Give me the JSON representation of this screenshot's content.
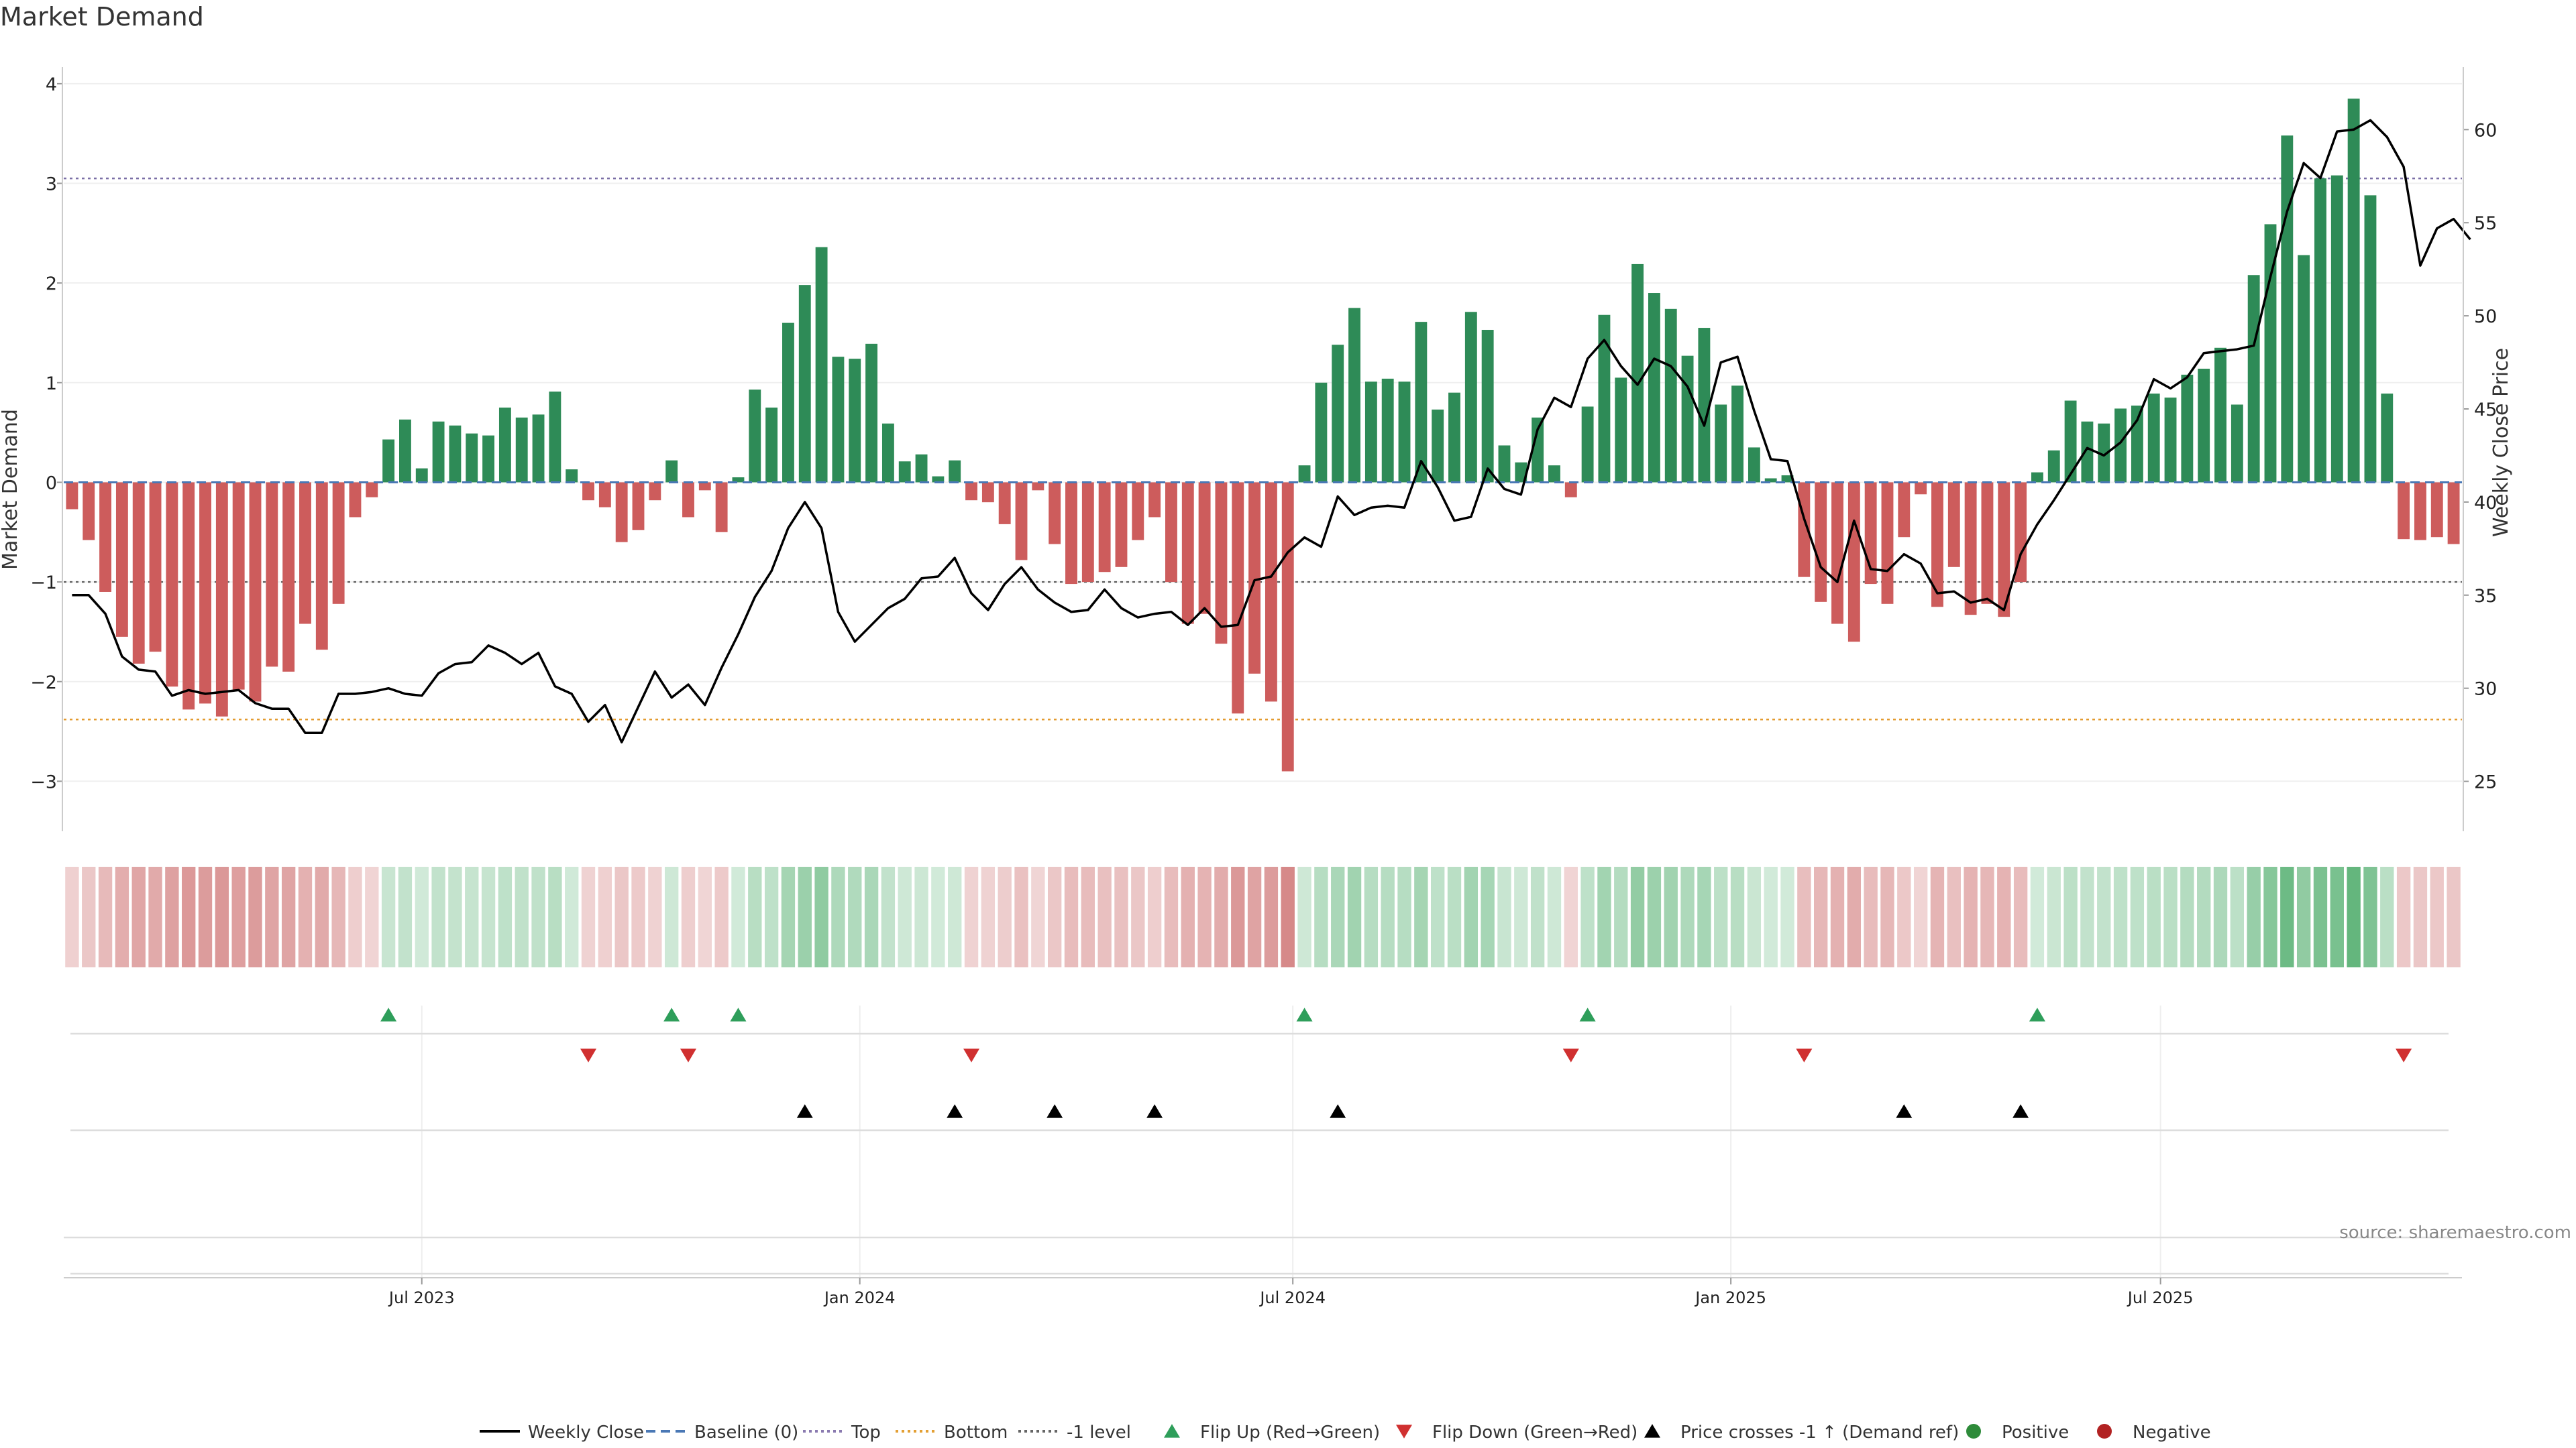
{
  "chart_data": {
    "type": "bar",
    "title": "Market Demand",
    "ylabel": "Market Demand",
    "y2label": "Weekly Close Price",
    "source": "source: sharemaestro.com",
    "ylim": [
      -3.3,
      4.1
    ],
    "y2lim": [
      23.4,
      63
    ],
    "yticks": [
      -3,
      -2,
      -1,
      0,
      1,
      2,
      3,
      4
    ],
    "y2ticks": [
      25,
      30,
      35,
      40,
      45,
      50,
      55,
      60
    ],
    "ytick_labels": [
      "−3",
      "−2",
      "−1",
      "0",
      "1",
      "2",
      "3",
      "4"
    ],
    "y2tick_labels": [
      "25",
      "30",
      "35",
      "40",
      "45",
      "50",
      "55",
      "60"
    ],
    "xtick_labels": [
      "Jul 2023",
      "Jan 2024",
      "Jul 2024",
      "Jan 2025",
      "Jul 2025"
    ],
    "xtick_index": [
      21.5,
      47.8,
      73.8,
      100.1,
      125.9
    ],
    "top_level": 3.05,
    "bottom_level": -2.38,
    "minus1_level": -1.0,
    "grid": true,
    "legend_placement": "bottom-center",
    "series": [
      {
        "name": "Market Demand",
        "values": [
          -0.27,
          -0.58,
          -1.1,
          -1.55,
          -1.82,
          -1.7,
          -2.05,
          -2.28,
          -2.22,
          -2.35,
          -2.08,
          -2.2,
          -1.85,
          -1.9,
          -1.42,
          -1.68,
          -1.22,
          -0.35,
          -0.15,
          0.43,
          0.63,
          0.14,
          0.61,
          0.57,
          0.49,
          0.47,
          0.75,
          0.65,
          0.68,
          0.91,
          0.13,
          -0.18,
          -0.25,
          -0.6,
          -0.48,
          -0.18,
          0.22,
          -0.35,
          -0.08,
          -0.5,
          0.05,
          0.93,
          0.75,
          1.6,
          1.98,
          2.36,
          1.26,
          1.24,
          1.39,
          0.59,
          0.21,
          0.28,
          0.06,
          0.22,
          -0.18,
          -0.2,
          -0.42,
          -0.78,
          -0.08,
          -0.62,
          -1.02,
          -1.0,
          -0.9,
          -0.85,
          -0.58,
          -0.35,
          -1.0,
          -1.42,
          -1.32,
          -1.62,
          -2.32,
          -1.92,
          -2.2,
          -2.9,
          0.17,
          1.0,
          1.38,
          1.75,
          1.01,
          1.04,
          1.01,
          1.61,
          0.73,
          0.9,
          1.71,
          1.53,
          0.37,
          0.2,
          0.65,
          0.17,
          -0.15,
          0.76,
          1.68,
          1.05,
          2.19,
          1.9,
          1.74,
          1.27,
          1.55,
          0.78,
          0.97,
          0.35,
          0.04,
          0.07,
          -0.95,
          -1.2,
          -1.42,
          -1.6,
          -1.02,
          -1.22,
          -0.55,
          -0.12,
          -1.25,
          -0.85,
          -1.33,
          -1.22,
          -1.35,
          -1.0,
          0.1,
          0.32,
          0.82,
          0.61,
          0.59,
          0.74,
          0.77,
          0.89,
          0.85,
          1.08,
          1.14,
          1.35,
          0.78,
          2.08,
          2.59,
          3.48,
          2.28,
          3.05,
          3.08,
          3.85,
          2.88,
          0.89,
          -0.57,
          -0.58,
          -0.55,
          -0.62
        ]
      },
      {
        "name": "Weekly Close",
        "values": [
          35,
          35,
          34,
          31.7,
          31,
          30.9,
          29.6,
          29.9,
          29.7,
          29.8,
          29.9,
          29.2,
          28.9,
          28.9,
          27.6,
          27.6,
          29.7,
          29.7,
          29.8,
          30,
          29.7,
          29.6,
          30.8,
          31.3,
          31.4,
          32.3,
          31.9,
          31.3,
          31.9,
          30.1,
          29.7,
          28.2,
          29.1,
          27.1,
          29,
          30.9,
          29.5,
          30.2,
          29.1,
          31.1,
          32.9,
          34.9,
          36.3,
          38.6,
          40,
          38.6,
          34.1,
          32.5,
          33.4,
          34.3,
          34.8,
          35.9,
          36,
          37,
          35.1,
          34.2,
          35.6,
          36.5,
          35.3,
          34.6,
          34.1,
          34.2,
          35.3,
          34.3,
          33.8,
          34,
          34.1,
          33.4,
          34.3,
          33.3,
          33.4,
          35.8,
          36,
          37.3,
          38.1,
          37.6,
          40.3,
          39.3,
          39.7,
          39.8,
          39.7,
          42.2,
          40.8,
          39,
          39.2,
          41.8,
          40.7,
          40.4,
          43.9,
          45.6,
          45.1,
          47.7,
          48.7,
          47.3,
          46.3,
          47.7,
          47.3,
          46.2,
          44.1,
          47.5,
          47.8,
          44.9,
          42.3,
          42.2,
          39.1,
          36.5,
          35.7,
          39,
          36.4,
          36.3,
          37.2,
          36.7,
          35.1,
          35.2,
          34.6,
          34.8,
          34.2,
          37.2,
          38.8,
          40.1,
          41.5,
          42.9,
          42.5,
          43.2,
          44.4,
          46.6,
          46.1,
          46.7,
          48,
          48.1,
          48.2,
          48.4,
          52.1,
          55.6,
          58.2,
          57.4,
          59.9,
          60,
          60.5,
          59.6,
          58,
          52.7,
          54.7,
          55.2,
          54.1
        ]
      }
    ],
    "flip_up_index": [
      19,
      36,
      40,
      74,
      91,
      118
    ],
    "flip_down_index": [
      31,
      37,
      54,
      90,
      104,
      140
    ],
    "price_cross_index": [
      44,
      53,
      59,
      65,
      76,
      110,
      117
    ],
    "legend": [
      {
        "label": "Weekly Close",
        "kind": "line",
        "color": "#000000"
      },
      {
        "label": "Baseline (0)",
        "kind": "dashed",
        "color": "#4a78b5"
      },
      {
        "label": "Top",
        "kind": "dotted",
        "color": "#8a7ab0"
      },
      {
        "label": "Bottom",
        "kind": "dotted",
        "color": "#e3a035"
      },
      {
        "label": "-1 level",
        "kind": "dotted",
        "color": "#666666"
      },
      {
        "label": "Flip Up (Red→Green)",
        "kind": "tri-up",
        "color": "#2e9e5a"
      },
      {
        "label": "Flip Down (Green→Red)",
        "kind": "tri-down",
        "color": "#d03030"
      },
      {
        "label": "Price crosses -1 ↑ (Demand ref)",
        "kind": "tri-up",
        "color": "#000000"
      },
      {
        "label": "Positive",
        "kind": "dot",
        "color": "#2e8b3a"
      },
      {
        "label": "Negative",
        "kind": "dot",
        "color": "#b22222"
      }
    ],
    "colors": {
      "positive_bar": "#2e8b57",
      "negative_bar": "#cd5c5c",
      "line": "#000000",
      "grid": "#eeeeee"
    }
  }
}
